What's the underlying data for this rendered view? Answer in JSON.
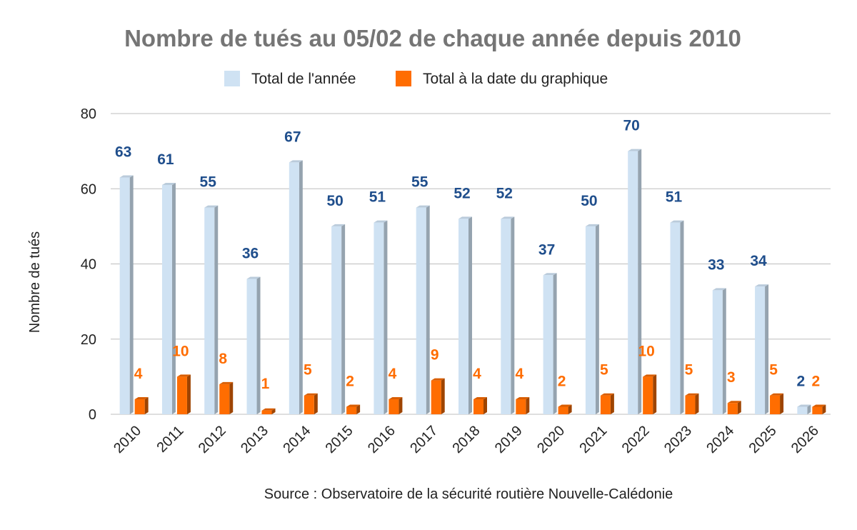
{
  "chart_data": {
    "type": "bar",
    "title": "Nombre de tués au 05/02 de chaque année depuis 2010",
    "xlabel": "",
    "ylabel": "Nombre de tués",
    "ylim": [
      0,
      80
    ],
    "yticks": [
      "0",
      "20",
      "40",
      "60",
      "80"
    ],
    "grid": true,
    "legend_position": "top",
    "categories": [
      "2010",
      "2011",
      "2012",
      "2013",
      "2014",
      "2015",
      "2016",
      "2017",
      "2018",
      "2019",
      "2020",
      "2021",
      "2022",
      "2023",
      "2024",
      "2025",
      "2026"
    ],
    "series": [
      {
        "name": "Total de l'année",
        "color": "#cfe2f3",
        "label_color": "#1f4e8c",
        "values": [
          63,
          61,
          55,
          36,
          67,
          50,
          51,
          55,
          52,
          52,
          37,
          50,
          70,
          51,
          33,
          34,
          2
        ]
      },
      {
        "name": "Total à la date du graphique",
        "color": "#ff6d01",
        "label_color": "#ff6d01",
        "values": [
          4,
          10,
          8,
          1,
          5,
          2,
          4,
          9,
          4,
          4,
          2,
          5,
          10,
          5,
          3,
          5,
          2
        ]
      }
    ],
    "source": "Source : Observatoire de la sécurité routière Nouvelle-Calédonie"
  }
}
